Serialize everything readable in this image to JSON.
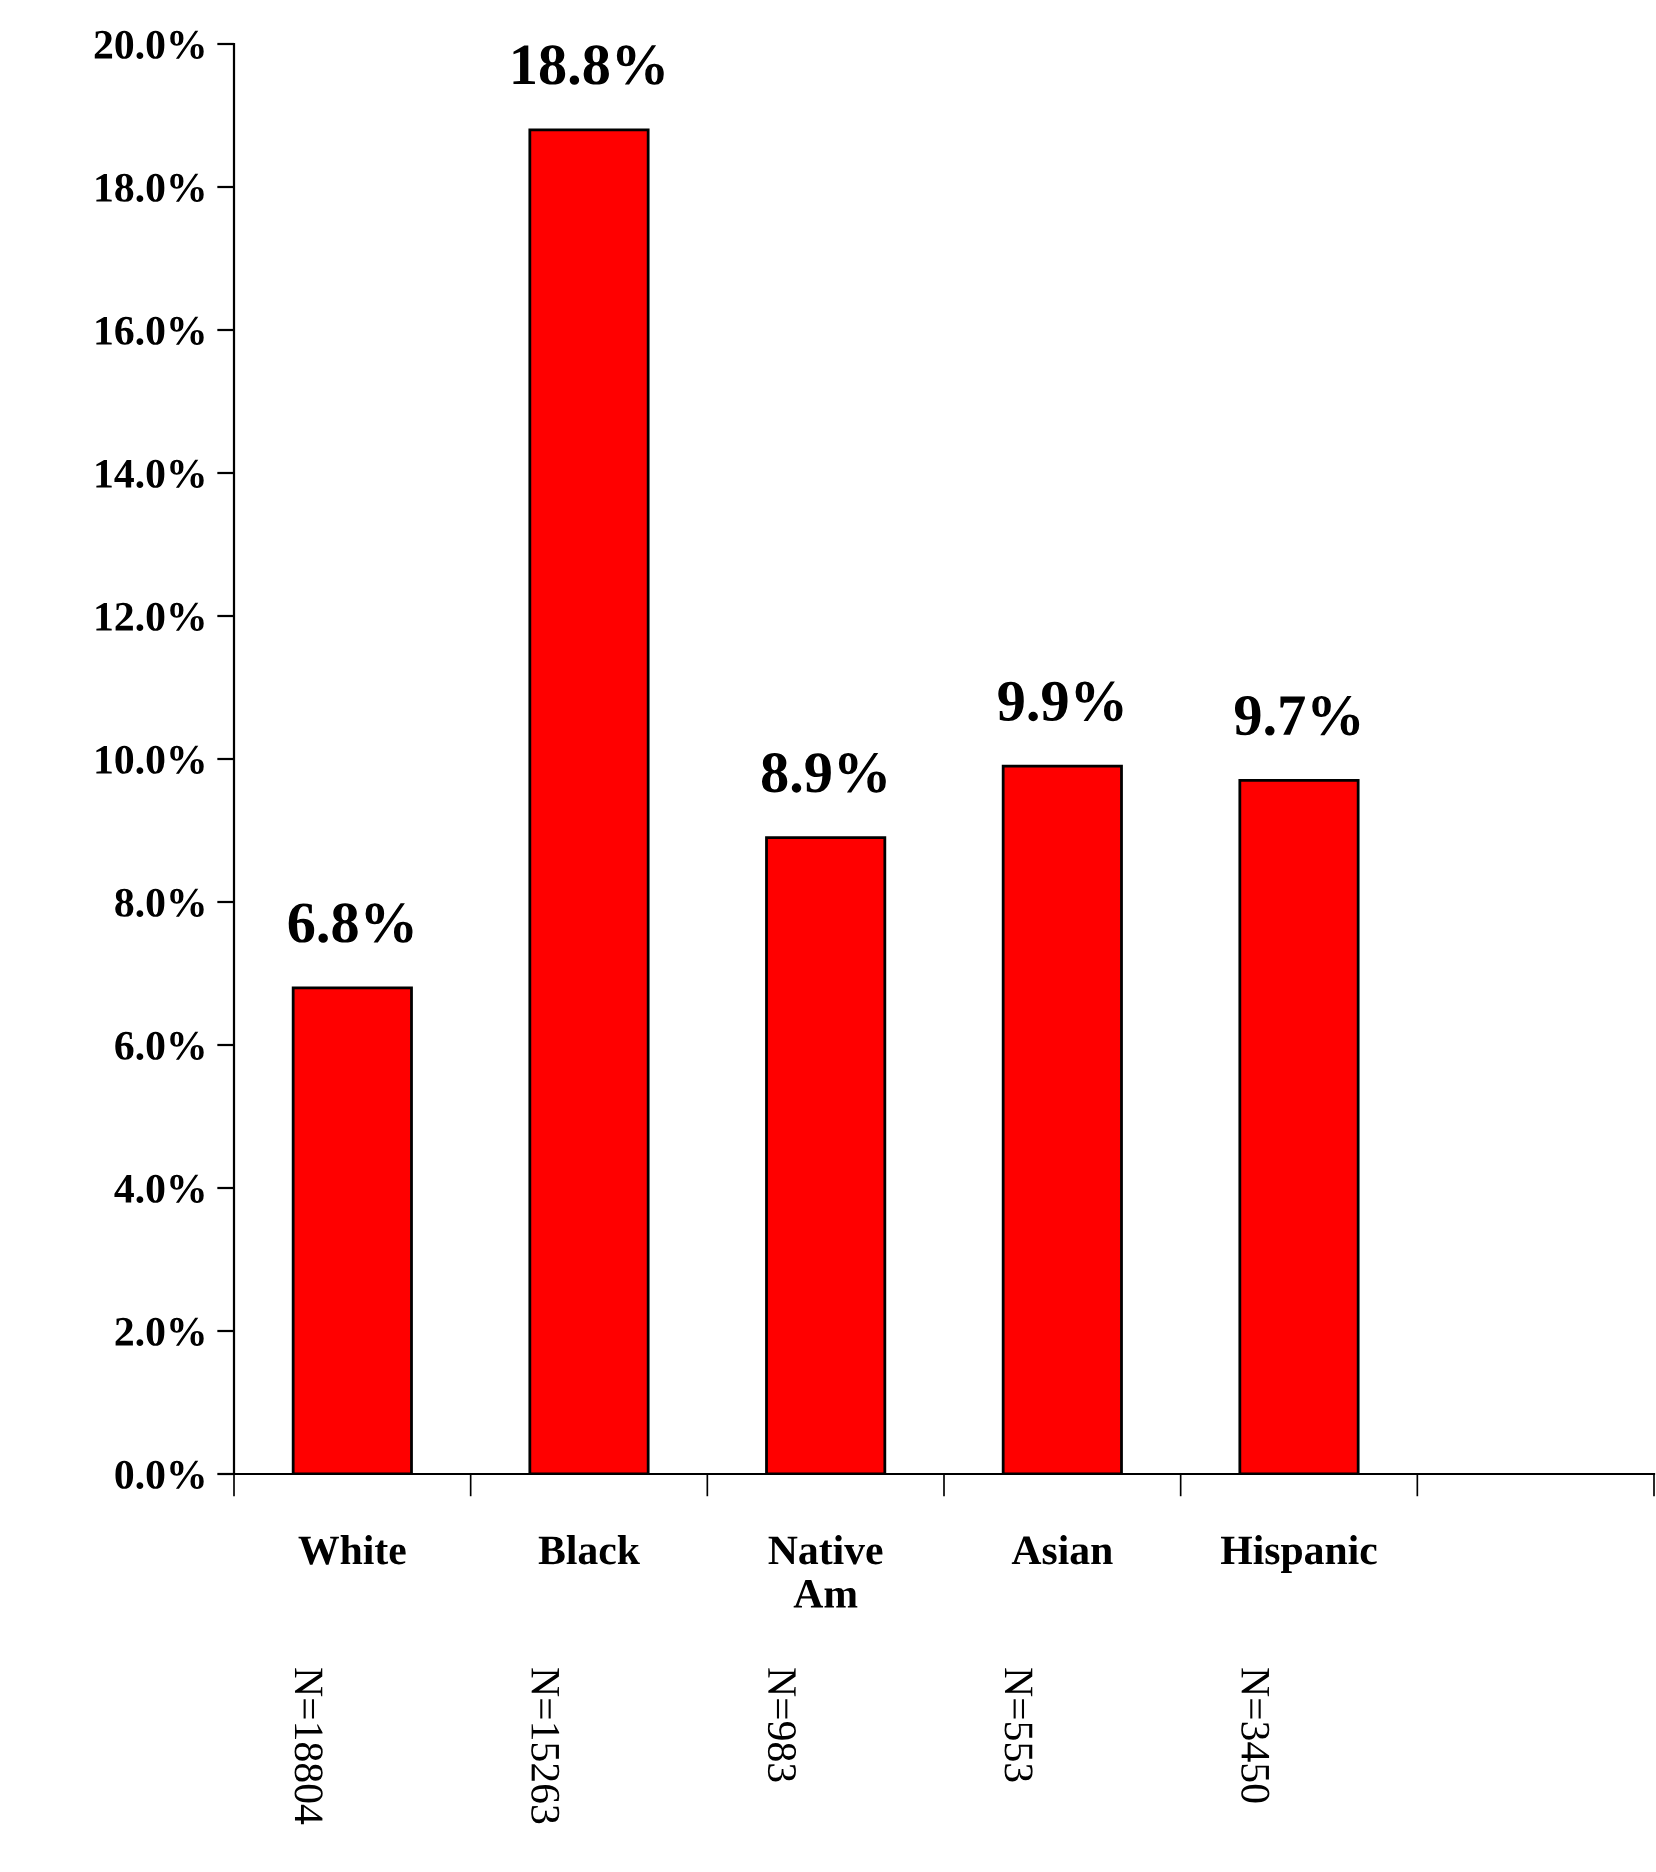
{
  "chart_data": {
    "type": "bar",
    "categories": [
      "White",
      "Black",
      "Native\nAm",
      "Asian",
      "Hispanic",
      null
    ],
    "values": [
      6.8,
      18.8,
      8.9,
      9.9,
      9.7,
      null
    ],
    "value_labels": [
      "6.8%",
      "18.8%",
      "8.9%",
      "9.9%",
      "9.7%",
      null
    ],
    "color": "#ff0000",
    "ylim": [
      0,
      20
    ],
    "yticks": [
      {
        "value": 0,
        "label": "0.0%"
      },
      {
        "value": 2,
        "label": "2.0%"
      },
      {
        "value": 4,
        "label": "4.0%"
      },
      {
        "value": 6,
        "label": "6.0%"
      },
      {
        "value": 8,
        "label": "8.0%"
      },
      {
        "value": 10,
        "label": "10.0%"
      },
      {
        "value": 12,
        "label": "12.0%"
      },
      {
        "value": 14,
        "label": "14.0%"
      },
      {
        "value": 16,
        "label": "16.0%"
      },
      {
        "value": 18,
        "label": "18.0%"
      },
      {
        "value": 20,
        "label": "20.0%"
      }
    ],
    "annotations": [
      "N=18804",
      "N=15263",
      "N=983",
      "N=553",
      "N=3450"
    ],
    "grid": false,
    "legend": false
  }
}
